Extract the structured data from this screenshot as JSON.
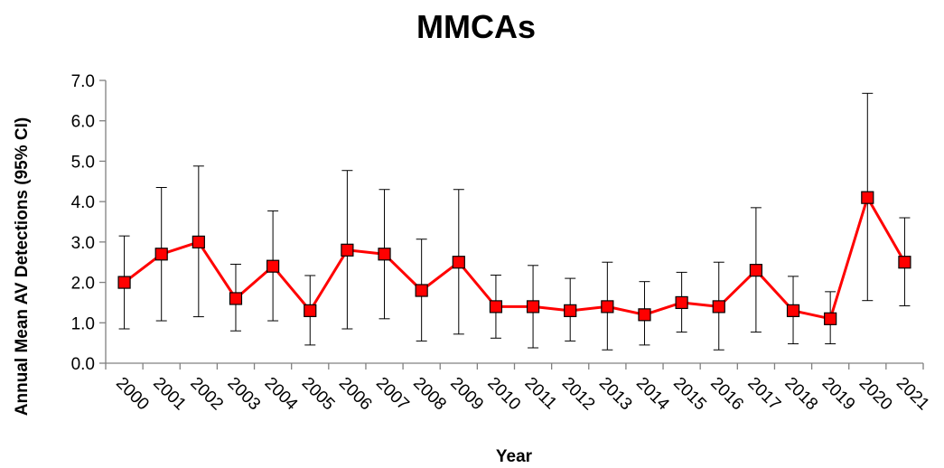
{
  "chart_data": {
    "type": "line",
    "title": "MMCAs",
    "xlabel": "Year",
    "ylabel": "Annual Mean AV Detections (95% CI)",
    "ylim": [
      0,
      7
    ],
    "yticks": [
      "0.0",
      "1.0",
      "2.0",
      "3.0",
      "4.0",
      "5.0",
      "6.0",
      "7.0"
    ],
    "grid": false,
    "legend": "none",
    "categories": [
      "2000",
      "2001",
      "2002",
      "2003",
      "2004",
      "2005",
      "2006",
      "2007",
      "2008",
      "2009",
      "2010",
      "2011",
      "2012",
      "2013",
      "2014",
      "2015",
      "2016",
      "2017",
      "2018",
      "2019",
      "2020",
      "2021"
    ],
    "series": [
      {
        "values": [
          2.0,
          2.7,
          3.0,
          1.6,
          2.4,
          1.3,
          2.8,
          2.7,
          1.8,
          2.5,
          1.4,
          1.4,
          1.3,
          1.4,
          1.2,
          1.5,
          1.4,
          2.3,
          1.3,
          1.1,
          4.1,
          2.5
        ],
        "ci_lower": [
          0.85,
          1.05,
          1.15,
          0.8,
          1.05,
          0.45,
          0.85,
          1.1,
          0.55,
          0.72,
          0.62,
          0.38,
          0.55,
          0.33,
          0.45,
          0.77,
          0.33,
          0.77,
          0.48,
          0.48,
          1.55,
          1.42
        ],
        "ci_upper": [
          3.15,
          4.35,
          4.88,
          2.45,
          3.77,
          2.17,
          4.77,
          4.3,
          3.07,
          4.3,
          2.18,
          2.42,
          2.1,
          2.5,
          2.02,
          2.25,
          2.5,
          3.85,
          2.15,
          1.77,
          6.68,
          3.6
        ]
      }
    ],
    "colors": {
      "line": "#ff0000",
      "marker_fill": "#ff0000",
      "marker_stroke": "#000000",
      "error_bar": "#000000",
      "axis": "#808080"
    }
  }
}
